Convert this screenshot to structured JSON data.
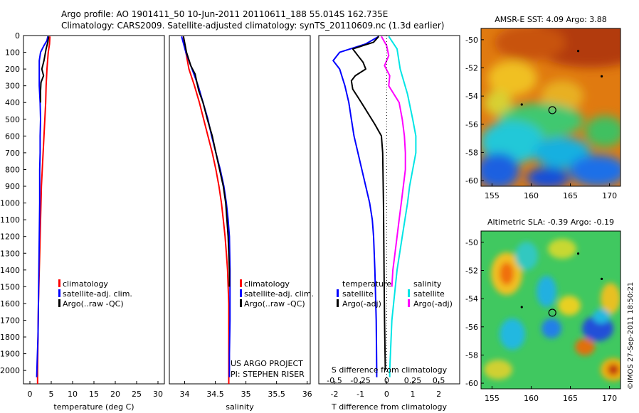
{
  "header": {
    "line1": "Argo profile: AO 1901411_50 10-Jun-2011 20110611_188 55.014S 162.735E",
    "line2": "Climatology: CARS2009. Satellite-adjusted climatology: synTS_20110609.nc (1.3d earlier)"
  },
  "footer": {
    "project": "US ARGO PROJECT",
    "pi": "PI: STEPHEN RISER",
    "imos": "©IMOS 27-Sep-2011 18:50:21"
  },
  "colors": {
    "climatology": "#ff0000",
    "satellite": "#0000ff",
    "argo": "#000000",
    "sat_salinity": "#00e5e5",
    "argo_salinity": "#ff00ff"
  },
  "chart_data": [
    {
      "id": "temperature",
      "type": "line",
      "xlabel": "temperature (deg C)",
      "xlim": [
        -1.5,
        31.5
      ],
      "xticks": [
        0,
        5,
        10,
        15,
        20,
        25,
        30
      ],
      "ylim": [
        2080,
        0
      ],
      "yticks": [
        0,
        100,
        200,
        300,
        400,
        500,
        600,
        700,
        800,
        900,
        1000,
        1100,
        1200,
        1300,
        1400,
        1500,
        1600,
        1700,
        1800,
        1900,
        2000
      ],
      "legend": [
        "climatology",
        "satellite-adj. clim.",
        "Argo(..raw -QC)"
      ],
      "series": [
        {
          "name": "climatology",
          "color": "#ff0000",
          "points": [
            [
              4.7,
              5
            ],
            [
              4.6,
              50
            ],
            [
              4.3,
              100
            ],
            [
              4.0,
              200
            ],
            [
              3.8,
              300
            ],
            [
              3.7,
              400
            ],
            [
              3.5,
              500
            ],
            [
              3.3,
              600
            ],
            [
              3.1,
              700
            ],
            [
              2.9,
              800
            ],
            [
              2.7,
              900
            ],
            [
              2.6,
              1000
            ],
            [
              2.5,
              1100
            ],
            [
              2.4,
              1200
            ],
            [
              2.3,
              1300
            ],
            [
              2.2,
              1400
            ],
            [
              2.1,
              1500
            ],
            [
              2.0,
              1600
            ],
            [
              1.9,
              1800
            ],
            [
              1.8,
              2000
            ],
            [
              1.8,
              2080
            ]
          ]
        },
        {
          "name": "satellite-adj. clim.",
          "color": "#0000ff",
          "points": [
            [
              4.2,
              5
            ],
            [
              4.0,
              30
            ],
            [
              3.3,
              60
            ],
            [
              2.5,
              100
            ],
            [
              2.2,
              150
            ],
            [
              2.2,
              300
            ],
            [
              2.4,
              400
            ],
            [
              2.5,
              500
            ],
            [
              2.4,
              600
            ],
            [
              2.4,
              700
            ],
            [
              2.3,
              800
            ],
            [
              2.3,
              1000
            ],
            [
              2.2,
              1200
            ],
            [
              2.1,
              1400
            ],
            [
              2.0,
              1600
            ],
            [
              1.9,
              1800
            ],
            [
              1.7,
              1950
            ],
            [
              1.6,
              2040
            ]
          ]
        },
        {
          "name": "Argo(..raw -QC)",
          "color": "#000000",
          "points": [
            [
              4.4,
              5
            ],
            [
              4.2,
              40
            ],
            [
              3.8,
              80
            ],
            [
              3.3,
              150
            ],
            [
              2.8,
              200
            ],
            [
              3.2,
              240
            ],
            [
              2.6,
              280
            ],
            [
              2.5,
              330
            ],
            [
              2.5,
              400
            ]
          ]
        }
      ]
    },
    {
      "id": "salinity",
      "type": "line",
      "xlabel": "salinity",
      "xlim": [
        33.75,
        36.05
      ],
      "xticks": [
        34,
        34.5,
        35,
        35.5,
        36
      ],
      "legend": [
        "climatology",
        "satellite-adj. clim.",
        "Argo(..raw -QC)"
      ],
      "series": [
        {
          "name": "climatology",
          "color": "#ff0000",
          "points": [
            [
              33.98,
              5
            ],
            [
              34.02,
              100
            ],
            [
              34.07,
              200
            ],
            [
              34.16,
              300
            ],
            [
              34.24,
              400
            ],
            [
              34.31,
              500
            ],
            [
              34.38,
              600
            ],
            [
              34.45,
              700
            ],
            [
              34.51,
              800
            ],
            [
              34.56,
              900
            ],
            [
              34.6,
              1000
            ],
            [
              34.63,
              1100
            ],
            [
              34.66,
              1200
            ],
            [
              34.68,
              1300
            ],
            [
              34.7,
              1400
            ],
            [
              34.71,
              1500
            ],
            [
              34.72,
              1600
            ],
            [
              34.72,
              1800
            ],
            [
              34.72,
              2000
            ],
            [
              34.72,
              2080
            ]
          ]
        },
        {
          "name": "satellite-adj. clim.",
          "color": "#0000ff",
          "points": [
            [
              33.95,
              5
            ],
            [
              34.02,
              100
            ],
            [
              34.12,
              200
            ],
            [
              34.22,
              300
            ],
            [
              34.3,
              400
            ],
            [
              34.38,
              500
            ],
            [
              34.44,
              600
            ],
            [
              34.51,
              700
            ],
            [
              34.58,
              800
            ],
            [
              34.64,
              900
            ],
            [
              34.68,
              1000
            ],
            [
              34.71,
              1100
            ],
            [
              34.73,
              1200
            ],
            [
              34.74,
              1400
            ],
            [
              34.74,
              1700
            ],
            [
              34.73,
              1900
            ],
            [
              34.73,
              2040
            ]
          ]
        },
        {
          "name": "Argo(..raw -QC)",
          "color": "#000000",
          "points": [
            [
              33.98,
              5
            ],
            [
              34.03,
              100
            ],
            [
              34.1,
              180
            ],
            [
              34.17,
              230
            ],
            [
              34.2,
              280
            ],
            [
              34.23,
              330
            ],
            [
              34.3,
              400
            ],
            [
              34.37,
              500
            ],
            [
              34.45,
              600
            ],
            [
              34.51,
              700
            ],
            [
              34.57,
              800
            ],
            [
              34.63,
              900
            ],
            [
              34.67,
              1000
            ],
            [
              34.69,
              1100
            ],
            [
              34.71,
              1200
            ],
            [
              34.72,
              1300
            ],
            [
              34.73,
              1400
            ],
            [
              34.73,
              1500
            ]
          ]
        }
      ]
    },
    {
      "id": "differences",
      "type": "line",
      "xlabel": "T difference from climatology",
      "xlabel2": "S difference from climatology",
      "xlim": [
        -2.6,
        2.8
      ],
      "xticks_T": [
        -2,
        -1,
        0,
        1,
        2
      ],
      "xticks_S": [
        -0.5,
        -0.25,
        0,
        0.25,
        0.5
      ],
      "legend_temperature": {
        "title": "temperature",
        "items": [
          "satellite",
          "Argo(-adj)"
        ]
      },
      "legend_salinity": {
        "title": "salinity",
        "items": [
          "satellite",
          "Argo(-adj)"
        ]
      },
      "series": [
        {
          "name": "T satellite",
          "color": "#0000ff",
          "points": [
            [
              -0.3,
              5
            ],
            [
              -0.8,
              50
            ],
            [
              -1.8,
              100
            ],
            [
              -2.05,
              150
            ],
            [
              -1.8,
              200
            ],
            [
              -1.6,
              300
            ],
            [
              -1.45,
              400
            ],
            [
              -1.35,
              500
            ],
            [
              -1.25,
              600
            ],
            [
              -1.1,
              700
            ],
            [
              -0.95,
              800
            ],
            [
              -0.8,
              900
            ],
            [
              -0.65,
              1000
            ],
            [
              -0.55,
              1100
            ],
            [
              -0.5,
              1200
            ],
            [
              -0.45,
              1400
            ],
            [
              -0.4,
              1700
            ],
            [
              -0.38,
              2000
            ],
            [
              -0.38,
              2040
            ]
          ]
        },
        {
          "name": "T Argo(-adj)",
          "color": "#000000",
          "points": [
            [
              -0.3,
              5
            ],
            [
              -0.5,
              40
            ],
            [
              -1.3,
              80
            ],
            [
              -1.1,
              120
            ],
            [
              -0.9,
              160
            ],
            [
              -0.8,
              200
            ],
            [
              -1.2,
              240
            ],
            [
              -1.35,
              270
            ],
            [
              -1.3,
              320
            ],
            [
              -1.05,
              380
            ],
            [
              -0.85,
              430
            ],
            [
              -0.65,
              480
            ],
            [
              -0.45,
              530
            ],
            [
              -0.2,
              600
            ],
            [
              -0.15,
              700
            ],
            [
              -0.12,
              1000
            ],
            [
              -0.1,
              1400
            ],
            [
              -0.08,
              1700
            ],
            [
              -0.05,
              2000
            ]
          ]
        },
        {
          "name": "S satellite",
          "color": "#00e5e5",
          "points": [
            [
              0.02,
              5
            ],
            [
              0.1,
              80
            ],
            [
              0.13,
              200
            ],
            [
              0.2,
              350
            ],
            [
              0.25,
              500
            ],
            [
              0.28,
              600
            ],
            [
              0.28,
              700
            ],
            [
              0.25,
              800
            ],
            [
              0.22,
              900
            ],
            [
              0.2,
              1000
            ],
            [
              0.15,
              1200
            ],
            [
              0.1,
              1400
            ],
            [
              0.05,
              1700
            ],
            [
              0.03,
              2000
            ],
            [
              0.03,
              2040
            ]
          ]
        },
        {
          "name": "S Argo(-adj)",
          "color": "#ff00ff",
          "points": [
            [
              -0.05,
              5
            ],
            [
              0.0,
              60
            ],
            [
              0.02,
              120
            ],
            [
              -0.02,
              180
            ],
            [
              0.03,
              240
            ],
            [
              0.02,
              300
            ],
            [
              0.12,
              400
            ],
            [
              0.15,
              500
            ],
            [
              0.17,
              600
            ],
            [
              0.18,
              700
            ],
            [
              0.18,
              800
            ],
            [
              0.16,
              900
            ],
            [
              0.14,
              1000
            ],
            [
              0.12,
              1100
            ],
            [
              0.1,
              1200
            ],
            [
              0.08,
              1300
            ],
            [
              0.06,
              1400
            ],
            [
              0.05,
              1500
            ]
          ]
        }
      ]
    }
  ],
  "maps": [
    {
      "id": "sst",
      "title": "AMSR-E SST: 4.09  Argo: 3.88",
      "xticks": [
        155,
        160,
        165,
        170
      ],
      "yticks": [
        -50,
        -52,
        -54,
        -56,
        -58,
        -60
      ],
      "xlim": [
        153.6,
        171.4
      ],
      "ylim": [
        -49.2,
        -60.4
      ],
      "profile_marker": {
        "lon": 162.7,
        "lat": -55.0
      },
      "track_points": [
        [
          166.0,
          -50.8
        ],
        [
          169.0,
          -52.6
        ],
        [
          158.8,
          -54.6
        ]
      ]
    },
    {
      "id": "sla",
      "title": "Altimetric SLA: -0.39  Argo: -0.19",
      "xticks": [
        155,
        160,
        165,
        170
      ],
      "yticks": [
        -50,
        -52,
        -54,
        -56,
        -58,
        -60
      ],
      "xlim": [
        153.6,
        171.4
      ],
      "ylim": [
        -49.2,
        -60.4
      ],
      "profile_marker": {
        "lon": 162.7,
        "lat": -55.0
      },
      "track_points": [
        [
          166.0,
          -50.8
        ],
        [
          169.0,
          -52.6
        ],
        [
          158.8,
          -54.6
        ]
      ]
    }
  ]
}
